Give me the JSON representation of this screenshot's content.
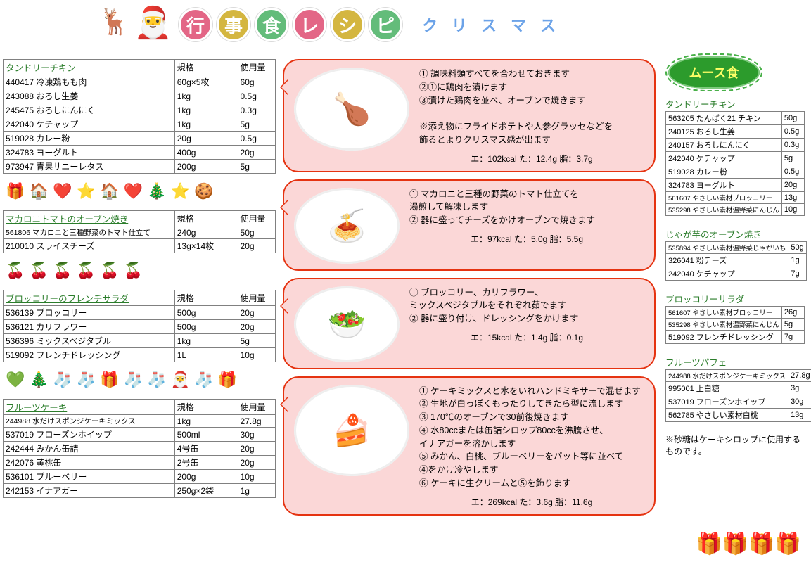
{
  "header": {
    "title_chars": [
      "行",
      "事",
      "食",
      "レ",
      "シ",
      "ピ"
    ],
    "title_colors": [
      "#e36686",
      "#d4b640",
      "#63bc7a",
      "#e36686",
      "#d4b640",
      "#63bc7a"
    ],
    "subtitle_chars": [
      "ク",
      "リ",
      "ス",
      "マ",
      "ス"
    ]
  },
  "recipes": [
    {
      "title": "タンドリーチキン",
      "headers": [
        "規格",
        "使用量"
      ],
      "name_col_width": 228,
      "rows": [
        {
          "code": "440417",
          "name": "冷凍鶏もも肉",
          "spec": "60g×5枚",
          "amt": "60g"
        },
        {
          "code": "243088",
          "name": "おろし生姜",
          "spec": "1kg",
          "amt": "0.5g"
        },
        {
          "code": "245475",
          "name": "おろしにんにく",
          "spec": "1kg",
          "amt": "0.3g"
        },
        {
          "code": "242040",
          "name": "ケチャップ",
          "spec": "1kg",
          "amt": "5g"
        },
        {
          "code": "519028",
          "name": "カレー粉",
          "spec": "20g",
          "amt": "0.5g"
        },
        {
          "code": "324783",
          "name": "ヨーグルト",
          "spec": "400g",
          "amt": "20g"
        },
        {
          "code": "973947",
          "name": "青果サニーレタス",
          "spec": "200g",
          "amt": "5g"
        }
      ],
      "decor": "🎁 🏠 ❤️ ⭐ 🏠 ❤️ 🎄 ⭐ 🍪"
    },
    {
      "title": "マカロニトマトのオーブン焼き",
      "headers": [
        "規格",
        "使用量"
      ],
      "rows": [
        {
          "code": "561806",
          "name": "マカロニと三種野菜のトマト仕立て",
          "spec": "240g",
          "amt": "50g",
          "small": true
        },
        {
          "code": "210010",
          "name": "スライスチーズ",
          "spec": "13g×14枚",
          "amt": "20g"
        }
      ],
      "decor": "🍒  🍒  🍒  🍒  🍒  🍒"
    },
    {
      "title": "ブロッコリーのフレンチサラダ",
      "headers": [
        "規格",
        "使用量"
      ],
      "rows": [
        {
          "code": "536139",
          "name": "ブロッコリー",
          "spec": "500g",
          "amt": "20g"
        },
        {
          "code": "536121",
          "name": "カリフラワー",
          "spec": "500g",
          "amt": "20g"
        },
        {
          "code": "536396",
          "name": "ミックスベジタブル",
          "spec": "1kg",
          "amt": "5g"
        },
        {
          "code": "519092",
          "name": "フレンチドレッシング",
          "spec": "1L",
          "amt": "10g"
        }
      ],
      "decor": "💚 🎄 🧦 🧦 🎁 🧦 🧦 🎅 🧦 🎁"
    },
    {
      "title": "フルーツケーキ",
      "headers": [
        "規格",
        "使用量"
      ],
      "rows": [
        {
          "code": "244988",
          "name": "水だけスポンジケーキミックス",
          "spec": "1kg",
          "amt": "27.8g",
          "small": true
        },
        {
          "code": "537019",
          "name": "フローズンホイップ",
          "spec": "500ml",
          "amt": "30g"
        },
        {
          "code": "242444",
          "name": "みかん缶詰",
          "spec": "4号缶",
          "amt": "20g"
        },
        {
          "code": "242076",
          "name": "黄桃缶",
          "spec": "2号缶",
          "amt": "20g"
        },
        {
          "code": "536101",
          "name": "ブルーベリー",
          "spec": "200g",
          "amt": "10g"
        },
        {
          "code": "242153",
          "name": "イナアガー",
          "spec": "250g×2袋",
          "amt": "1g"
        }
      ]
    }
  ],
  "cards": [
    {
      "emoji": "🍗",
      "steps": [
        "① 調味料類すべてを合わせておきます",
        "②①に鶏肉を漬けます",
        "③漬けた鶏肉を並べ、オーブンで焼きます",
        "",
        "※添え物にフライドポテトや人参グラッセなどを",
        "飾るとよりクリスマス感が出ます"
      ],
      "nutrition": "エ：102kcal  た：12.4g  脂：3.7g"
    },
    {
      "emoji": "🍝",
      "steps": [
        "① マカロニと三種の野菜のトマト仕立てを",
        "湯煎して解凍します",
        "② 器に盛ってチーズをかけオーブンで焼きます"
      ],
      "nutrition": "エ：97kcal  た：5.0g  脂：5.5g"
    },
    {
      "emoji": "🥗",
      "steps": [
        "① ブロッコリー、カリフラワー、",
        "ミックスベジタブルをそれぞれ茹でます",
        "② 器に盛り付け、ドレッシングをかけます"
      ],
      "nutrition": "エ：15kcal  た：1.4g  脂：0.1g"
    },
    {
      "emoji": "🍰",
      "steps": [
        "① ケーキミックスと水をいれハンドミキサーで混ぜます",
        "② 生地が白っぽくもったりしてきたら型に流します",
        "③ 170℃のオーブンで30前後焼きます",
        "④ 水80ccまたは缶詰シロップ80ccを沸騰させ、",
        "イナアガーを溶かします",
        "⑤ みかん、白桃、ブルーベリーをバット等に並べて",
        "④をかけ冷やします",
        "⑥ ケーキに生クリームと⑤を飾ります"
      ],
      "nutrition": "エ：269kcal  た：3.6g  脂：11.6g"
    }
  ],
  "mousse": {
    "badge": "ムース食",
    "blocks": [
      {
        "title": "タンドリーチキン",
        "rows": [
          {
            "code": "563205",
            "name": "たんぱく21 チキン",
            "amt": "50g"
          },
          {
            "code": "240125",
            "name": "おろし生姜",
            "amt": "0.5g"
          },
          {
            "code": "240157",
            "name": "おろしにんにく",
            "amt": "0.3g"
          },
          {
            "code": "242040",
            "name": "ケチャップ",
            "amt": "5g"
          },
          {
            "code": "519028",
            "name": "カレー粉",
            "amt": "0.5g"
          },
          {
            "code": "324783",
            "name": "ヨーグルト",
            "amt": "20g"
          },
          {
            "code": "561607",
            "name": "やさしい素材ブロッコリー",
            "amt": "13g",
            "tiny": true
          },
          {
            "code": "535298",
            "name": "やさしい素材温野菜にんじん",
            "amt": "10g",
            "tiny": true
          }
        ]
      },
      {
        "title": "じゃが芋のオーブン焼き",
        "rows": [
          {
            "code": "535894",
            "name": "やさしい素材温野菜じゃがいも",
            "amt": "50g",
            "tiny": true
          },
          {
            "code": "326041",
            "name": "粉チーズ",
            "amt": "1g"
          },
          {
            "code": "242040",
            "name": "ケチャップ",
            "amt": "7g"
          }
        ]
      },
      {
        "title": "ブロッコリーサラダ",
        "rows": [
          {
            "code": "561607",
            "name": "やさしい素材ブロッコリー",
            "amt": "26g",
            "tiny": true
          },
          {
            "code": "535298",
            "name": "やさしい素材温野菜にんじん",
            "amt": "5g",
            "tiny": true
          },
          {
            "code": "519092",
            "name": "フレンチドレッシング",
            "amt": "7g"
          }
        ]
      },
      {
        "title": "フルーツパフェ",
        "rows": [
          {
            "code": "244988",
            "name": "水だけスポンジケーキミックス",
            "amt": "27.8g",
            "tiny": true
          },
          {
            "code": "995001",
            "name": "上白糖",
            "amt": "3g"
          },
          {
            "code": "537019",
            "name": "フローズンホイップ",
            "amt": "30g"
          },
          {
            "code": "562785",
            "name": "やさしい素材白桃",
            "amt": "13g"
          }
        ]
      }
    ],
    "note": "※砂糖はケーキシロップに使用するものです。"
  }
}
